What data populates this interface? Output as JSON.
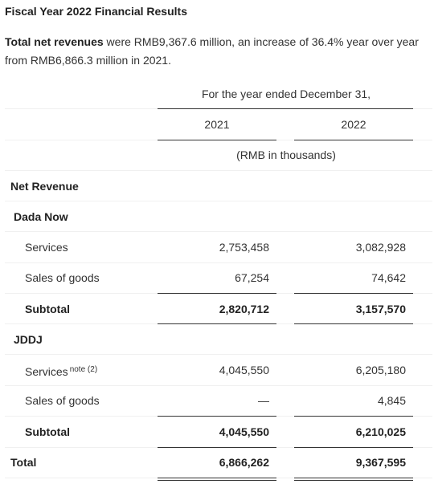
{
  "heading": "Fiscal Year 2022 Financial Results",
  "intro": {
    "bold_lead": "Total net revenues",
    "text_line1": " were RMB9,367.6 million, an increase of 36.4% year over year",
    "text_line2": "from RMB6,866.3 million in 2021."
  },
  "table": {
    "period_header": "For the year ended December 31,",
    "years": [
      "2021",
      "2022"
    ],
    "unit": "(RMB in thousands)",
    "net_revenue_label": "Net Revenue",
    "dada_now": {
      "label": "Dada Now",
      "services_label": "Services",
      "services": [
        "2,753,458",
        "3,082,928"
      ],
      "sales_label": "Sales of goods",
      "sales": [
        "67,254",
        "74,642"
      ],
      "subtotal_label": "Subtotal",
      "subtotal": [
        "2,820,712",
        "3,157,570"
      ]
    },
    "jddj": {
      "label": "JDDJ",
      "services_label": "Services",
      "services_note": "note (2)",
      "services": [
        "4,045,550",
        "6,205,180"
      ],
      "sales_label": "Sales of goods",
      "sales": [
        "—",
        "4,845"
      ],
      "subtotal_label": "Subtotal",
      "subtotal": [
        "4,045,550",
        "6,210,025"
      ]
    },
    "total_label": "Total",
    "total": [
      "6,866,262",
      "9,367,595"
    ]
  }
}
